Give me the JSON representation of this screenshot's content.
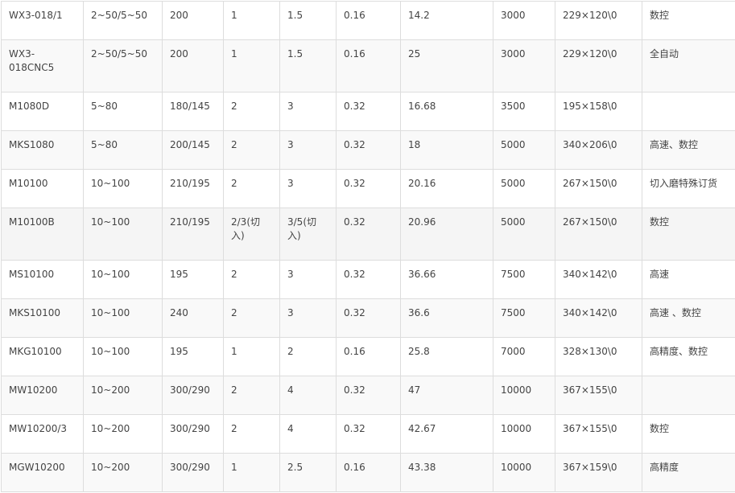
{
  "rows": [
    [
      "WX3-018/1",
      "2~50/5~50",
      "200",
      "1",
      "1.5",
      "0.16",
      "14.2",
      "3000",
      "229×120\\0",
      "数控"
    ],
    [
      "WX3-018CNC5",
      "2~50/5~50",
      "200",
      "1",
      "1.5",
      "0.16",
      "25",
      "3000",
      "229×120\\0",
      "全自动"
    ],
    [
      "M1080D",
      "5~80",
      "180/145",
      "2",
      "3",
      "0.32",
      "16.68",
      "3500",
      "195×158\\0",
      ""
    ],
    [
      "MKS1080",
      "5~80",
      "200/145",
      "2",
      "3",
      "0.32",
      "18",
      "5000",
      "340×206\\0",
      "高速、数控"
    ],
    [
      "M10100",
      "10~100",
      "210/195",
      "2",
      "3",
      "0.32",
      "20.16",
      "5000",
      "267×150\\0",
      "切入磨特殊订货"
    ],
    [
      "M10100B",
      "10~100",
      "210/195",
      "2/3(切入)",
      "3/5(切入)",
      "0.32",
      "20.96",
      "5000",
      "267×150\\0",
      "数控"
    ],
    [
      "MS10100",
      "10~100",
      "195",
      "2",
      "3",
      "0.32",
      "36.66",
      "7500",
      "340×142\\0",
      "高速"
    ],
    [
      "MKS10100",
      "10~100",
      "240",
      "2",
      "3",
      "0.32",
      "36.6",
      "7500",
      "340×142\\0",
      "高速 、数控"
    ],
    [
      "MKG10100",
      "10~100",
      "195",
      "1",
      "2",
      "0.16",
      "25.8",
      "7000",
      "328×130\\0",
      "高精度、数控"
    ],
    [
      "MW10200",
      "10~200",
      "300/290",
      "2",
      "4",
      "0.32",
      "47",
      "10000",
      "367×155\\0",
      ""
    ],
    [
      "MW10200/3",
      "10~200",
      "300/290",
      "2",
      "4",
      "0.32",
      "42.67",
      "10000",
      "367×155\\0",
      "数控"
    ],
    [
      "MGW10200",
      "10~200",
      "300/290",
      "1",
      "2.5",
      "0.16",
      "43.38",
      "10000",
      "367×159\\0",
      "高精度"
    ]
  ]
}
